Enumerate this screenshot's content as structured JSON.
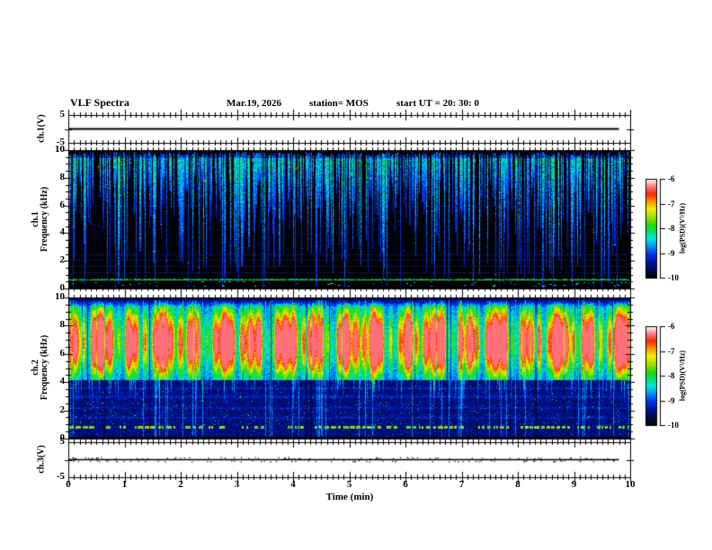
{
  "header": {
    "title": "VLF Spectra",
    "date": "Mar.19, 2026",
    "station": "station= MOS",
    "start_ut": "start UT =  20: 30: 0"
  },
  "time_axis": {
    "label": "Time (min)",
    "ticks": [
      0,
      1,
      2,
      3,
      4,
      5,
      6,
      7,
      8,
      9,
      10
    ],
    "minor_step_min": 0.1,
    "range_min": [
      0,
      10
    ]
  },
  "colors": {
    "background": "#ffffff",
    "frame": "#000000",
    "waveform": "#000000",
    "colormap_stops": [
      [
        0.0,
        "#000205"
      ],
      [
        0.08,
        "#000a45"
      ],
      [
        0.16,
        "#0012a0"
      ],
      [
        0.24,
        "#0030e8"
      ],
      [
        0.32,
        "#0090f8"
      ],
      [
        0.4,
        "#00e8d8"
      ],
      [
        0.47,
        "#00e070"
      ],
      [
        0.54,
        "#28d800"
      ],
      [
        0.62,
        "#a0e000"
      ],
      [
        0.7,
        "#f0ee00"
      ],
      [
        0.78,
        "#ff9000"
      ],
      [
        0.85,
        "#ff2800"
      ],
      [
        0.92,
        "#ff7078"
      ],
      [
        1.0,
        "#ffffff"
      ]
    ]
  },
  "chart_data": [
    {
      "panel": "ch1-voltage",
      "type": "line",
      "ylabel": "ch.1(V)",
      "ylim": [
        -5,
        5
      ],
      "yticks": [
        5,
        -5
      ],
      "x_min": [
        0,
        9.8
      ],
      "values": [
        0,
        0
      ]
    },
    {
      "panel": "ch1-spectrogram",
      "type": "heatmap",
      "ylabel_lines": [
        "ch.1",
        "Frequency (kHz)"
      ],
      "ylim_khz": [
        0,
        10
      ],
      "yticks": [
        10,
        8,
        6,
        4,
        2,
        0
      ],
      "xlim_min": [
        0,
        10
      ],
      "features": {
        "background": "black",
        "streak_band_khz": [
          4,
          10
        ],
        "bright_line_khz": 0.65,
        "faint_lines_khz": [
          1.2,
          1.6,
          2.1,
          2.5
        ],
        "faint_line_high_khz": 6.0
      },
      "colorbar": {
        "label": "log(PSD)(V²/Hz)",
        "ticks": [
          -6,
          -7,
          -8,
          -9,
          -10
        ],
        "range": [
          -10,
          -6
        ]
      }
    },
    {
      "panel": "ch2-spectrogram",
      "type": "heatmap",
      "ylabel_lines": [
        "ch.2",
        "Frequency (kHz)"
      ],
      "ylim_khz": [
        0,
        10
      ],
      "yticks": [
        10,
        8,
        6,
        4,
        2,
        0
      ],
      "xlim_min": [
        0,
        10
      ],
      "features": {
        "intense_band_khz": [
          4.5,
          9.5
        ],
        "band_peak_khz": 6.85,
        "dashed_line_khz": 0.8,
        "faint_lines_khz": [
          1.5,
          2.2,
          3.0,
          3.6
        ]
      },
      "colorbar": {
        "label": "log(PSD)(V²/Hz)",
        "ticks": [
          -6,
          -7,
          -8,
          -9,
          -10
        ],
        "range": [
          -10,
          -6
        ]
      }
    },
    {
      "panel": "ch3-voltage",
      "type": "line",
      "ylabel": "ch.3(V)",
      "ylim": [
        -5,
        5
      ],
      "yticks": [
        5,
        -5
      ],
      "x_min": [
        0,
        9.8
      ],
      "values": [
        0,
        0
      ]
    }
  ]
}
